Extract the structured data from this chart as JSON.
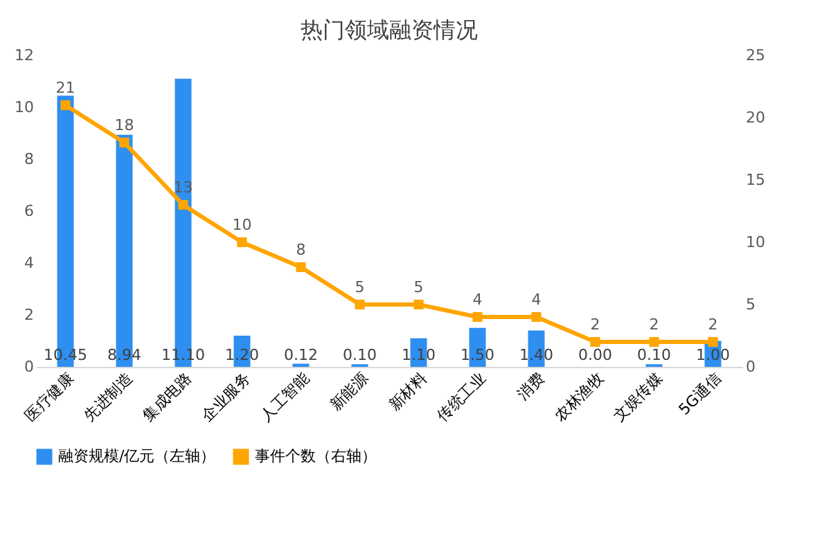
{
  "chart_data": {
    "type": "bar",
    "title": "热门领域融资情况",
    "categories": [
      "医疗健康",
      "先进制造",
      "集成电路",
      "企业服务",
      "人工智能",
      "新能源",
      "新材料",
      "传统工业",
      "消费",
      "农林渔牧",
      "文娱传媒",
      "5G通信"
    ],
    "series": [
      {
        "name": "融资规模/亿元（左轴）",
        "color": "#2e8ff0",
        "values": [
          10.45,
          8.94,
          11.1,
          1.2,
          0.12,
          0.1,
          1.1,
          1.5,
          1.4,
          0.0,
          0.1,
          1.0
        ],
        "value_labels": [
          "10.45",
          "8.94",
          "11.10",
          "1.20",
          "0.12",
          "0.10",
          "1.10",
          "1.50",
          "1.40",
          "0.00",
          "0.10",
          "1.00"
        ]
      },
      {
        "name": "事件个数（右轴）",
        "type": "line",
        "axis": "y2",
        "color": "#ffa500",
        "marker": "square",
        "values": [
          21,
          18,
          13,
          10,
          8,
          5,
          5,
          4,
          4,
          2,
          2,
          2
        ],
        "value_labels": [
          "21",
          "18",
          "13",
          "10",
          "8",
          "5",
          "5",
          "4",
          "4",
          "2",
          "2",
          "2"
        ]
      }
    ],
    "ylim": [
      0,
      12
    ],
    "yticks": [
      0,
      2,
      4,
      6,
      8,
      10,
      12
    ],
    "y2lim": [
      0,
      25
    ],
    "y2ticks": [
      0,
      5,
      10,
      15,
      20,
      25
    ],
    "grid": false,
    "legend": "bottom"
  }
}
